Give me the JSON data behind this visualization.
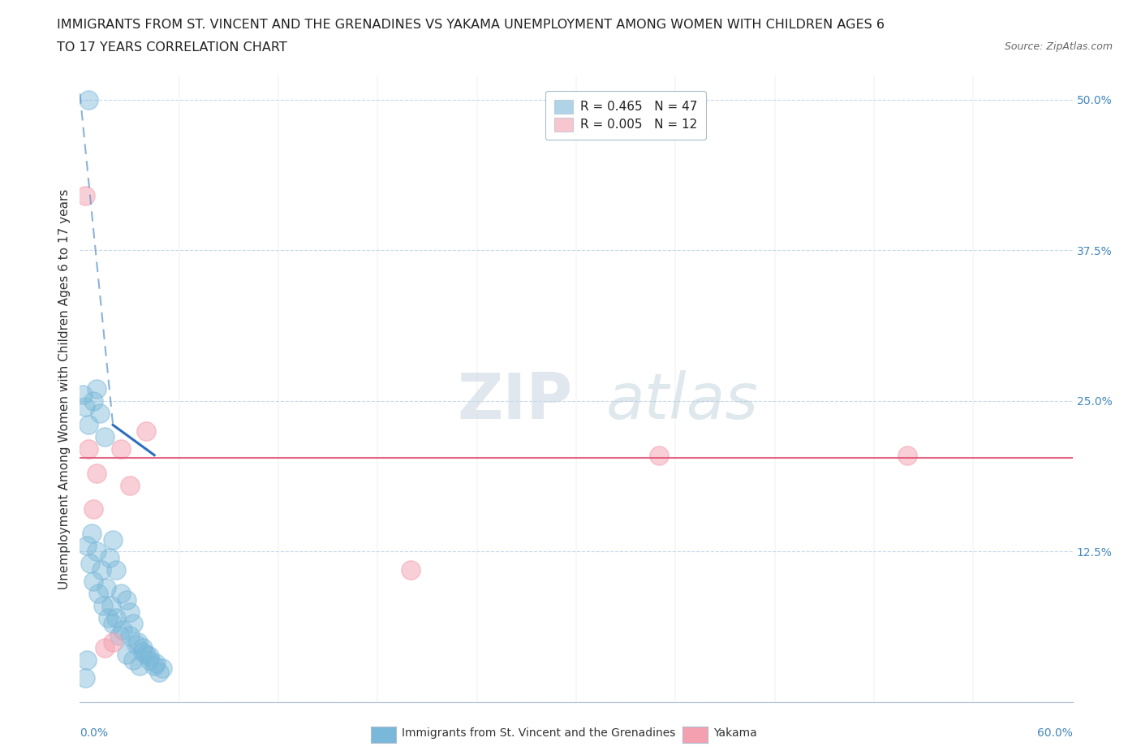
{
  "title_line1": "IMMIGRANTS FROM ST. VINCENT AND THE GRENADINES VS YAKAMA UNEMPLOYMENT AMONG WOMEN WITH CHILDREN AGES 6",
  "title_line2": "TO 17 YEARS CORRELATION CHART",
  "source": "Source: ZipAtlas.com",
  "xlabel_0": "0.0%",
  "xlabel_max": "60.0%",
  "ylabel": "Unemployment Among Women with Children Ages 6 to 17 years",
  "ytick_positions": [
    0.0,
    12.5,
    25.0,
    37.5,
    50.0
  ],
  "ytick_labels": [
    "",
    "12.5%",
    "25.0%",
    "37.5%",
    "50.0%"
  ],
  "legend1_label": "R = 0.465   N = 47",
  "legend2_label": "R = 0.005   N = 12",
  "blue_color": "#7ab8d9",
  "pink_color": "#f4a0b0",
  "trendline_blue_solid_color": "#2266bb",
  "trendline_blue_dash_color": "#6699cc",
  "trendline_pink_color": "#e05878",
  "watermark_zip": "ZIP",
  "watermark_atlas": "atlas",
  "xmin": 0.0,
  "xmax": 60.0,
  "ymin": 0.0,
  "ymax": 52.0,
  "bg_color": "#ffffff",
  "grid_color": "#c8d8e8",
  "title_fontsize": 11.5,
  "axis_label_fontsize": 11,
  "tick_fontsize": 10,
  "blue_scatter_x": [
    0.5,
    0.3,
    0.4,
    0.8,
    1.0,
    1.2,
    1.5,
    1.8,
    2.0,
    2.2,
    2.5,
    2.8,
    3.0,
    3.2,
    3.5,
    3.8,
    4.0,
    4.2,
    4.5,
    4.8,
    0.2,
    0.3,
    0.5,
    0.7,
    1.0,
    1.3,
    1.6,
    1.9,
    2.2,
    2.6,
    3.0,
    3.4,
    3.8,
    4.2,
    4.6,
    5.0,
    0.4,
    0.6,
    0.8,
    1.1,
    1.4,
    1.7,
    2.0,
    2.4,
    2.8,
    3.2,
    3.6
  ],
  "blue_scatter_y": [
    50.0,
    2.0,
    3.5,
    25.0,
    26.0,
    24.0,
    22.0,
    12.0,
    13.5,
    11.0,
    9.0,
    8.5,
    7.5,
    6.5,
    5.0,
    4.5,
    4.0,
    3.5,
    3.0,
    2.5,
    25.5,
    24.5,
    23.0,
    14.0,
    12.5,
    11.0,
    9.5,
    8.0,
    7.0,
    6.0,
    5.5,
    4.8,
    4.2,
    3.8,
    3.2,
    2.8,
    13.0,
    11.5,
    10.0,
    9.0,
    8.0,
    7.0,
    6.5,
    5.5,
    4.0,
    3.5,
    3.0
  ],
  "pink_scatter_x": [
    0.3,
    0.5,
    1.0,
    1.5,
    2.0,
    2.5,
    3.0,
    4.0,
    35.0,
    20.0,
    50.0,
    0.8
  ],
  "pink_scatter_y": [
    42.0,
    21.0,
    19.0,
    4.5,
    5.0,
    21.0,
    18.0,
    22.5,
    20.5,
    11.0,
    20.5,
    16.0
  ],
  "blue_trend_solid_x1": 2.0,
  "blue_trend_solid_y1": 23.0,
  "blue_trend_solid_x2": 4.5,
  "blue_trend_solid_y2": 20.5,
  "blue_trend_dash_x1": 0.0,
  "blue_trend_dash_y1": 50.5,
  "blue_trend_dash_x2": 2.0,
  "blue_trend_dash_y2": 23.0,
  "pink_trend_y": 20.3
}
